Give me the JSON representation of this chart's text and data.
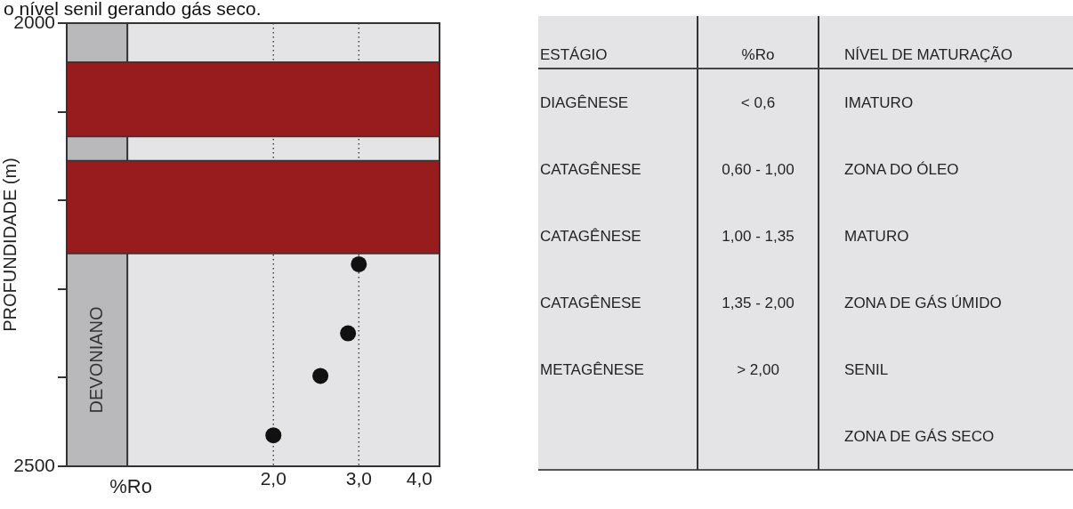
{
  "chart_data": [
    {
      "type": "scatter",
      "title": "o nível senil gerando gás seco.",
      "xlabel": "%Ro",
      "ylabel": "PROFUNDIDADE (m)",
      "log": "x",
      "marker": "circle",
      "grid": false,
      "xlim": [
        0.75,
        4.4
      ],
      "xticks": [
        {
          "value": 2,
          "label": "2,0"
        },
        {
          "value": 3,
          "label": "3,0"
        },
        {
          "value": 4,
          "label": "4,0"
        }
      ],
      "ylim": [
        2500,
        2000
      ],
      "yticks": [
        2000,
        {
          "value": 2100,
          "label": null
        },
        {
          "value": 2200,
          "label": null
        },
        {
          "value": 2300,
          "label": null
        },
        {
          "value": 2400,
          "label": null
        },
        2500
      ],
      "series": [
        {
          "color": "#111111",
          "x": [
            3.0,
            2.85,
            2.5,
            2.0
          ],
          "values": [
            2272,
            2350,
            2398,
            2465
          ]
        }
      ],
      "bands": [
        {
          "axis": "x",
          "from": 0.75,
          "to": 1.0,
          "label": "DEVONIANO",
          "color": "#b9b9bb"
        },
        {
          "axis": "y",
          "from": 2044,
          "to": 2128,
          "color": "#981b1e"
        },
        {
          "axis": "y",
          "from": 2155,
          "to": 2260,
          "color": "#981b1e"
        }
      ],
      "ref_lines": [
        {
          "axis": "x",
          "value": 2,
          "line_style": "dotted",
          "color": "#444444"
        },
        {
          "axis": "x",
          "value": 3,
          "line_style": "dotted",
          "color": "#444444"
        }
      ]
    },
    {
      "type": "other",
      "categories": [
        "ESTÁGIO",
        "%Ro",
        "NÍVEL DE MATURAÇÃO"
      ],
      "annotations": [
        "DIAGÊNESE",
        "< 0,6",
        "IMATURO",
        "CATAGÊNESE",
        "0,60 - 1,00",
        "ZONA DO ÓLEO",
        "CATAGÊNESE",
        "1,00 - 1,35",
        "MATURO",
        "CATAGÊNESE",
        "1,35 - 2,00",
        "ZONA DE GÁS ÚMIDO",
        "METAGÊNESE",
        "> 2,00",
        "SENIL",
        null,
        null,
        "ZONA DE GÁS SECO"
      ]
    }
  ]
}
